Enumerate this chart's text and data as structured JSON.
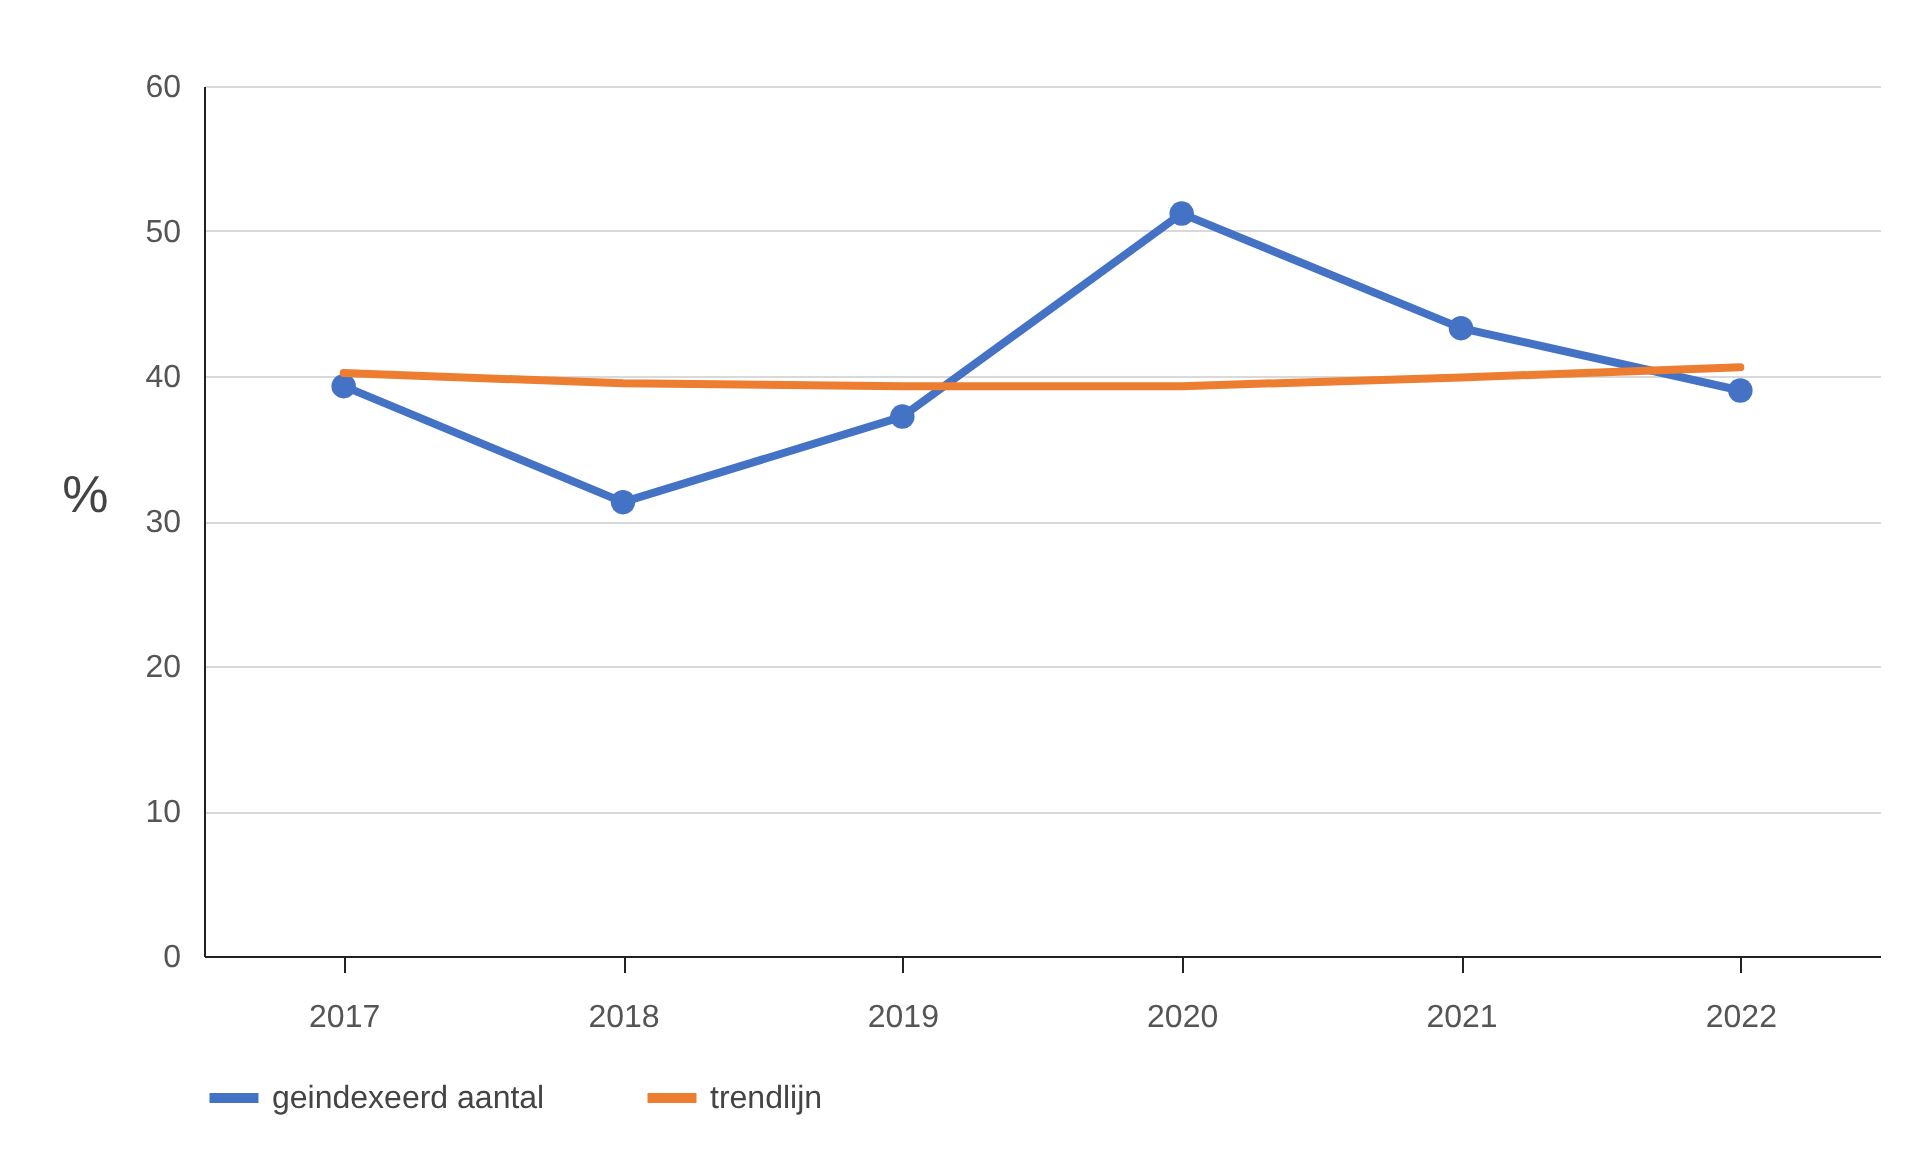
{
  "chart_data": {
    "type": "line",
    "ylabel": "%",
    "categories": [
      "2017",
      "2018",
      "2019",
      "2020",
      "2021",
      "2022"
    ],
    "series": [
      {
        "name": "geindexeerd aantal",
        "color": "#4472c4",
        "values": [
          39.3,
          31.3,
          37.2,
          51.2,
          43.3,
          39.0
        ],
        "marker": "circle"
      },
      {
        "name": "trendlijn",
        "color": "#ed7d31",
        "values": [
          40.2,
          39.5,
          39.3,
          39.3,
          39.9,
          40.6
        ],
        "marker": "none"
      }
    ],
    "ylim": [
      0,
      60
    ],
    "yticks": [
      0,
      10,
      20,
      30,
      40,
      50,
      60
    ],
    "grid": "y",
    "legend": "bottom",
    "line_style": "solid"
  }
}
